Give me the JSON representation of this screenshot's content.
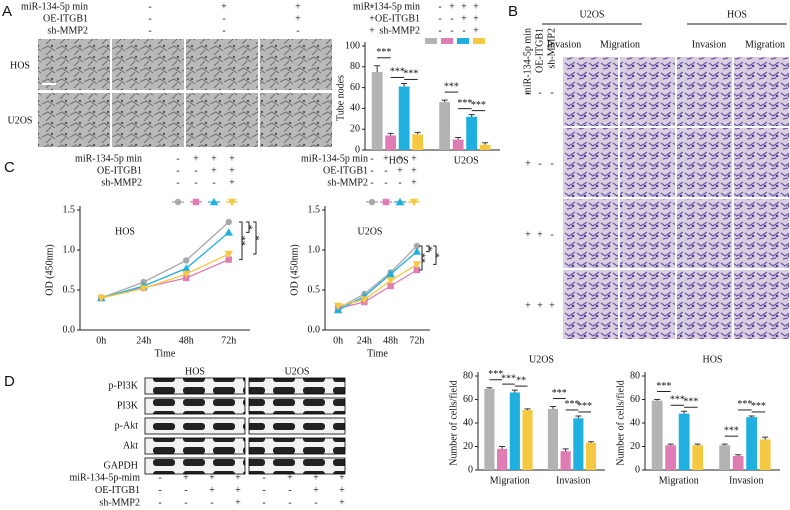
{
  "panels": [
    "A",
    "B",
    "C",
    "D"
  ],
  "panel_a": {
    "treatments": [
      {
        "label": "miR-134-5p min",
        "signs": [
          "-",
          "+",
          "+",
          "+"
        ]
      },
      {
        "label": "OE-ITGB1",
        "signs": [
          "-",
          "-",
          "+",
          "+"
        ]
      },
      {
        "label": "sh-MMP2",
        "signs": [
          "-",
          "-",
          "-",
          "+"
        ]
      }
    ],
    "row_labels": [
      "HOS",
      "U2OS"
    ]
  },
  "panel_b": {
    "cell_lines": [
      "U2OS",
      "HOS"
    ],
    "assays": [
      "Invasion",
      "Migration"
    ],
    "treatments": [
      {
        "label": "miR-134-5p min",
        "signs": [
          "-",
          "+",
          "+",
          "+"
        ]
      },
      {
        "label": "OE-ITGB1",
        "signs": [
          "-",
          "-",
          "+",
          "+"
        ]
      },
      {
        "label": "sh-MMP2",
        "signs": [
          "-",
          "-",
          "-",
          "+"
        ]
      }
    ]
  },
  "blot": {
    "groups": [
      "HOS",
      "U2OS"
    ],
    "proteins": [
      "p-PI3K",
      "PI3K",
      "p-Akt",
      "Akt",
      "GAPDH"
    ],
    "treatments": [
      {
        "label": "miR-134-5p-mim",
        "signs": [
          "-",
          "+",
          "+",
          "+",
          "-",
          "+",
          "+",
          "+"
        ]
      },
      {
        "label": "OE-ITGB1",
        "signs": [
          "-",
          "-",
          "+",
          "+",
          "-",
          "-",
          "+",
          "+"
        ]
      },
      {
        "label": "sh-MMP2",
        "signs": [
          "-",
          "-",
          "-",
          "+",
          "-",
          "-",
          "-",
          "+"
        ]
      }
    ]
  },
  "chart_data": [
    {
      "type": "bar",
      "ylabel": "Tube nodes",
      "categories": [
        "HOS",
        "U2OS"
      ],
      "ylim": [
        0,
        100
      ],
      "yticks": [
        0,
        20,
        40,
        60,
        80,
        100
      ],
      "legend": true,
      "treatments": [
        {
          "label": "miR-134-5p min",
          "signs": [
            "-",
            "+",
            "+",
            "+"
          ]
        },
        {
          "label": "OE-ITGB1",
          "signs": [
            "-",
            "-",
            "+",
            "+"
          ]
        },
        {
          "label": "sh-MMP2",
          "signs": [
            "-",
            "-",
            "-",
            "+"
          ]
        }
      ],
      "series": [
        {
          "color": "#b3b3b3",
          "values": [
            75,
            46
          ],
          "errors": [
            6,
            2
          ]
        },
        {
          "color": "#e07cb4",
          "values": [
            14,
            10
          ],
          "errors": [
            2,
            2
          ]
        },
        {
          "color": "#1fb0e0",
          "values": [
            61,
            32
          ],
          "errors": [
            3,
            2
          ]
        },
        {
          "color": "#f5c842",
          "values": [
            15,
            5
          ],
          "errors": [
            2,
            2
          ]
        }
      ],
      "significance": [
        [
          "***",
          "***",
          "***"
        ],
        [
          "***",
          "***",
          "***"
        ]
      ]
    },
    {
      "type": "line",
      "title": "HOS",
      "xlabel": "Time",
      "ylabel": "OD (450nm)",
      "categories": [
        "0h",
        "24h",
        "48h",
        "72h"
      ],
      "ylim": [
        0,
        1.5
      ],
      "yticks": [
        {
          "value": 0,
          "label": "0.0"
        },
        0.5,
        {
          "value": 1,
          "label": "1.0"
        },
        1.5
      ],
      "treatments": [
        {
          "label": "miR-134-5p min",
          "signs": [
            "-",
            "+",
            "+",
            "+"
          ]
        },
        {
          "label": "OE-ITGB1",
          "signs": [
            "-",
            "-",
            "+",
            "+"
          ]
        },
        {
          "label": "sh-MMP2",
          "signs": [
            "-",
            "-",
            "-",
            "+"
          ]
        }
      ],
      "series": [
        {
          "color": "#a8a8a8",
          "marker": "circle",
          "values": [
            0.4,
            0.6,
            0.87,
            1.35
          ]
        },
        {
          "color": "#e07cb4",
          "marker": "square",
          "values": [
            0.4,
            0.53,
            0.65,
            0.88
          ]
        },
        {
          "color": "#1fb0e0",
          "marker": "triangle-up",
          "values": [
            0.4,
            0.55,
            0.77,
            1.22
          ]
        },
        {
          "color": "#f5c842",
          "marker": "triangle-down",
          "values": [
            0.4,
            0.52,
            0.7,
            0.95
          ]
        }
      ],
      "significance": [
        "**",
        "*",
        "*"
      ]
    },
    {
      "type": "line",
      "title": "U2OS",
      "xlabel": "Time",
      "ylabel": "OD (450nm)",
      "categories": [
        "0h",
        "24h",
        "48h",
        "72h"
      ],
      "ylim": [
        0,
        1.5
      ],
      "yticks": [
        {
          "value": 0,
          "label": "0.0"
        },
        0.5,
        {
          "value": 1,
          "label": "1.0"
        },
        1.5
      ],
      "treatments": [
        {
          "label": "miR-134-5p min",
          "signs": [
            "-",
            "+",
            "+",
            "+"
          ]
        },
        {
          "label": "OE-ITGB1",
          "signs": [
            "-",
            "-",
            "+",
            "+"
          ]
        },
        {
          "label": "sh-MMP2",
          "signs": [
            "-",
            "-",
            "-",
            "+"
          ]
        }
      ],
      "series": [
        {
          "color": "#a8a8a8",
          "marker": "circle",
          "values": [
            0.27,
            0.45,
            0.72,
            1.05
          ]
        },
        {
          "color": "#e07cb4",
          "marker": "square",
          "values": [
            0.27,
            0.35,
            0.55,
            0.75
          ]
        },
        {
          "color": "#1fb0e0",
          "marker": "triangle-up",
          "values": [
            0.25,
            0.42,
            0.7,
            0.98
          ]
        },
        {
          "color": "#f5c842",
          "marker": "triangle-down",
          "values": [
            0.3,
            0.38,
            0.62,
            0.82
          ]
        }
      ],
      "significance": [
        "**",
        "*",
        "*"
      ]
    },
    {
      "type": "bar",
      "title": "U2OS",
      "ylabel": "Number of cells/field",
      "categories": [
        "Migration",
        "Invasion"
      ],
      "ylim": [
        0,
        80
      ],
      "yticks": [
        0,
        20,
        40,
        60,
        80
      ],
      "series": [
        {
          "color": "#b3b3b3",
          "values": [
            69,
            52
          ],
          "errors": [
            1,
            2
          ]
        },
        {
          "color": "#e07cb4",
          "values": [
            18,
            16
          ],
          "errors": [
            2,
            2
          ]
        },
        {
          "color": "#1fb0e0",
          "values": [
            66,
            44
          ],
          "errors": [
            2,
            2
          ]
        },
        {
          "color": "#f5c842",
          "values": [
            51,
            23
          ],
          "errors": [
            1,
            1
          ]
        }
      ],
      "significance": [
        [
          "***",
          "***",
          "**"
        ],
        [
          "***",
          "***",
          "***"
        ]
      ]
    },
    {
      "type": "bar",
      "title": "HOS",
      "ylabel": "Number of cells/field",
      "categories": [
        "Migration",
        "Invasion"
      ],
      "ylim": [
        0,
        80
      ],
      "yticks": [
        0,
        20,
        40,
        60,
        80
      ],
      "series": [
        {
          "color": "#b3b3b3",
          "values": [
            59,
            21
          ],
          "errors": [
            1,
            1
          ]
        },
        {
          "color": "#e07cb4",
          "values": [
            21,
            12
          ],
          "errors": [
            1,
            1
          ]
        },
        {
          "color": "#1fb0e0",
          "values": [
            48,
            45
          ],
          "errors": [
            2,
            1
          ]
        },
        {
          "color": "#f5c842",
          "values": [
            21,
            26
          ],
          "errors": [
            1,
            2
          ]
        }
      ],
      "significance": [
        [
          "***",
          "***",
          "***"
        ],
        [
          "***",
          "***",
          "***"
        ]
      ]
    }
  ]
}
